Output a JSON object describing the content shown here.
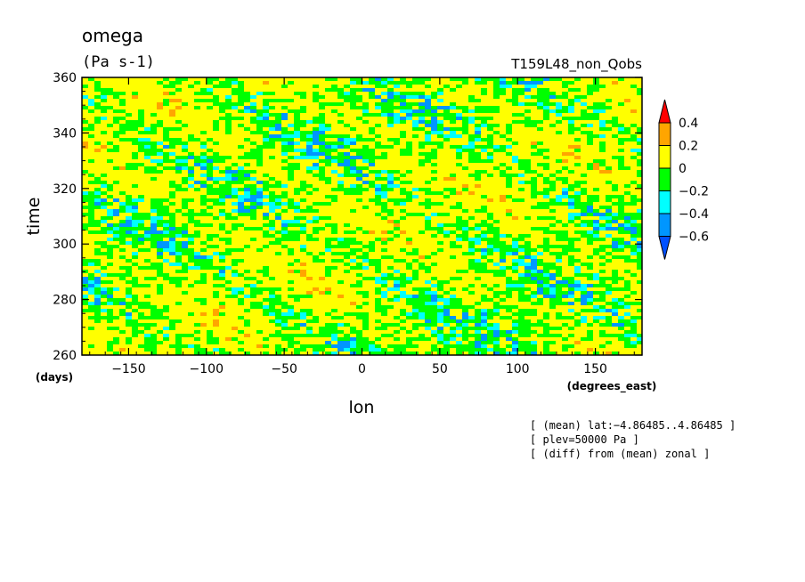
{
  "chart_data": {
    "type": "heatmap",
    "title": "omega",
    "units": "(Pa s-1)",
    "run_label": "T159L48_non_Qobs",
    "xlabel": "lon",
    "xunits": "(degrees_east)",
    "ylabel": "time",
    "yunits": "(days)",
    "xlim": [
      -180,
      180
    ],
    "ylim": [
      260,
      360
    ],
    "xticks": [
      -150,
      -100,
      -50,
      0,
      50,
      100,
      150
    ],
    "yticks": [
      260,
      280,
      300,
      320,
      340,
      360
    ],
    "xtick_labels": [
      "−150",
      "−100",
      "−50",
      "0",
      "50",
      "100",
      "150"
    ],
    "ytick_labels": [
      "260",
      "280",
      "300",
      "320",
      "340",
      "360"
    ],
    "colorbar": {
      "boundaries": [
        -0.6,
        -0.4,
        -0.2,
        0,
        0.2,
        0.4
      ],
      "labels": [
        "0.4",
        "0.2",
        "0",
        "−0.2",
        "−0.4",
        "−0.6"
      ],
      "colors": [
        "#0050ff",
        "#0096ff",
        "#00ffff",
        "#00ff00",
        "#ffff00",
        "#ffa500",
        "#ff0000"
      ],
      "extend": "both"
    },
    "notes": [
      "[ (mean) lat:−4.86485..4.86485 ]",
      "[ plev=50000 Pa ]",
      "[ (diff) from (mean) zonal ]"
    ]
  }
}
